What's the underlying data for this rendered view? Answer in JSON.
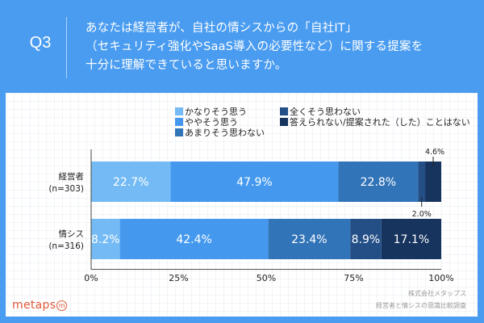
{
  "header": {
    "question_label": "Q3",
    "question_lines": [
      "あなたは経営者が、自社の情シスからの「自社IT」",
      "（セキュリティ強化やSaaS導入の必要性など）に関する提案を",
      "十分に理解できていると思いますか。"
    ]
  },
  "colors": {
    "header_bg": "#4a9cf0",
    "series": [
      "#74bbf5",
      "#4499ef",
      "#3274b8",
      "#234f86",
      "#17345e"
    ],
    "logo": "#e05a3a"
  },
  "chart_data": {
    "type": "bar",
    "orientation": "horizontal",
    "stacked": true,
    "categories": [
      "経営者\n(n=303)",
      "情シス\n(n=316)"
    ],
    "category_lines": [
      [
        "経営者",
        "(n=303)"
      ],
      [
        "情シス",
        "(n=316)"
      ]
    ],
    "series": [
      {
        "name": "かなりそう思う",
        "values": [
          22.7,
          8.2
        ]
      },
      {
        "name": "ややそう思う",
        "values": [
          47.9,
          42.4
        ]
      },
      {
        "name": "あまりそう思わない",
        "values": [
          22.8,
          23.4
        ]
      },
      {
        "name": "全くそう思わない",
        "values": [
          2.0,
          8.9
        ]
      },
      {
        "name": "答えられない/提案された（した）ことはない",
        "values": [
          4.6,
          17.1
        ]
      }
    ],
    "data_labels": [
      [
        "22.7%",
        "47.9%",
        "22.8%",
        "2.0%",
        "4.6%"
      ],
      [
        "8.2%",
        "42.4%",
        "23.4%",
        "8.9%",
        "17.1%"
      ]
    ],
    "xlim": [
      0,
      100
    ],
    "xticks": [
      0,
      25,
      50,
      75,
      100
    ],
    "xtick_labels": [
      "0%",
      "25%",
      "50%",
      "75%",
      "100%"
    ],
    "legend_position": "top-right",
    "grid": false
  },
  "footer": {
    "credit_line1": "株式会社メタップス",
    "credit_line2": "経営者と情シスの意識比較調査",
    "logo_text": "metaps",
    "logo_mark": "m"
  }
}
